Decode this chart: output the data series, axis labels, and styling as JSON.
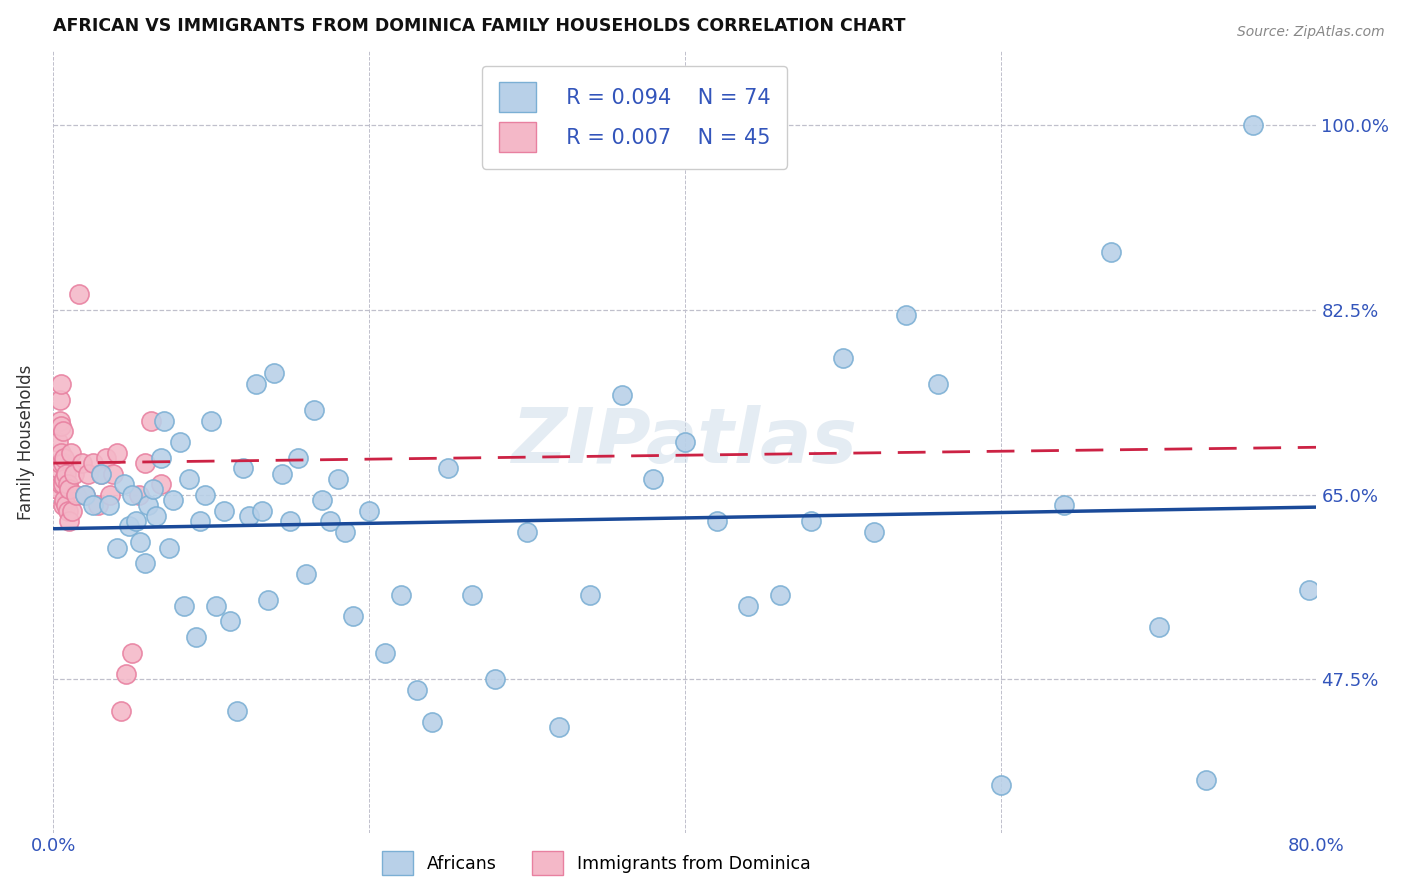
{
  "title": "AFRICAN VS IMMIGRANTS FROM DOMINICA FAMILY HOUSEHOLDS CORRELATION CHART",
  "source": "Source: ZipAtlas.com",
  "ylabel": "Family Households",
  "xlim": [
    0.0,
    0.8
  ],
  "ylim": [
    0.33,
    1.07
  ],
  "xticks": [
    0.0,
    0.2,
    0.4,
    0.6,
    0.8
  ],
  "xticklabels": [
    "0.0%",
    "",
    "",
    "",
    "80.0%"
  ],
  "yticks": [
    0.475,
    0.65,
    0.825,
    1.0
  ],
  "yticklabels": [
    "47.5%",
    "65.0%",
    "82.5%",
    "100.0%"
  ],
  "blue_fill": "#b8d0e8",
  "blue_edge": "#7bafd4",
  "pink_fill": "#f4b8c8",
  "pink_edge": "#e880a0",
  "trend_blue": "#1a4a99",
  "trend_pink": "#cc2244",
  "r_blue": "R = 0.094",
  "n_blue": "N = 74",
  "r_pink": "R = 0.007",
  "n_pink": "N = 45",
  "watermark": "ZIPatlas",
  "africans_x": [
    0.02,
    0.025,
    0.03,
    0.035,
    0.04,
    0.045,
    0.048,
    0.05,
    0.052,
    0.055,
    0.058,
    0.06,
    0.063,
    0.065,
    0.068,
    0.07,
    0.073,
    0.076,
    0.08,
    0.083,
    0.086,
    0.09,
    0.093,
    0.096,
    0.1,
    0.103,
    0.108,
    0.112,
    0.116,
    0.12,
    0.124,
    0.128,
    0.132,
    0.136,
    0.14,
    0.145,
    0.15,
    0.155,
    0.16,
    0.165,
    0.17,
    0.175,
    0.18,
    0.185,
    0.19,
    0.2,
    0.21,
    0.22,
    0.23,
    0.24,
    0.25,
    0.265,
    0.28,
    0.3,
    0.32,
    0.34,
    0.36,
    0.38,
    0.4,
    0.42,
    0.44,
    0.46,
    0.48,
    0.5,
    0.52,
    0.54,
    0.56,
    0.6,
    0.64,
    0.67,
    0.7,
    0.73,
    0.76,
    0.795
  ],
  "africans_y": [
    0.65,
    0.64,
    0.67,
    0.64,
    0.6,
    0.66,
    0.62,
    0.65,
    0.625,
    0.605,
    0.585,
    0.64,
    0.655,
    0.63,
    0.685,
    0.72,
    0.6,
    0.645,
    0.7,
    0.545,
    0.665,
    0.515,
    0.625,
    0.65,
    0.72,
    0.545,
    0.635,
    0.53,
    0.445,
    0.675,
    0.63,
    0.755,
    0.635,
    0.55,
    0.765,
    0.67,
    0.625,
    0.685,
    0.575,
    0.73,
    0.645,
    0.625,
    0.665,
    0.615,
    0.535,
    0.635,
    0.5,
    0.555,
    0.465,
    0.435,
    0.675,
    0.555,
    0.475,
    0.615,
    0.43,
    0.555,
    0.745,
    0.665,
    0.7,
    0.625,
    0.545,
    0.555,
    0.625,
    0.78,
    0.615,
    0.82,
    0.755,
    0.375,
    0.64,
    0.88,
    0.525,
    0.38,
    1.0,
    0.56
  ],
  "dominica_x": [
    0.002,
    0.003,
    0.003,
    0.004,
    0.004,
    0.004,
    0.005,
    0.005,
    0.005,
    0.005,
    0.006,
    0.006,
    0.006,
    0.006,
    0.007,
    0.007,
    0.007,
    0.008,
    0.008,
    0.009,
    0.009,
    0.01,
    0.01,
    0.011,
    0.012,
    0.013,
    0.014,
    0.016,
    0.018,
    0.02,
    0.022,
    0.025,
    0.028,
    0.03,
    0.033,
    0.036,
    0.038,
    0.04,
    0.043,
    0.046,
    0.05,
    0.054,
    0.058,
    0.062,
    0.068
  ],
  "dominica_y": [
    0.655,
    0.675,
    0.7,
    0.72,
    0.74,
    0.68,
    0.66,
    0.69,
    0.715,
    0.755,
    0.64,
    0.66,
    0.68,
    0.71,
    0.645,
    0.665,
    0.685,
    0.64,
    0.67,
    0.635,
    0.66,
    0.625,
    0.655,
    0.69,
    0.635,
    0.67,
    0.65,
    0.84,
    0.68,
    0.65,
    0.67,
    0.68,
    0.64,
    0.67,
    0.685,
    0.65,
    0.67,
    0.69,
    0.445,
    0.48,
    0.5,
    0.65,
    0.68,
    0.72,
    0.66
  ]
}
